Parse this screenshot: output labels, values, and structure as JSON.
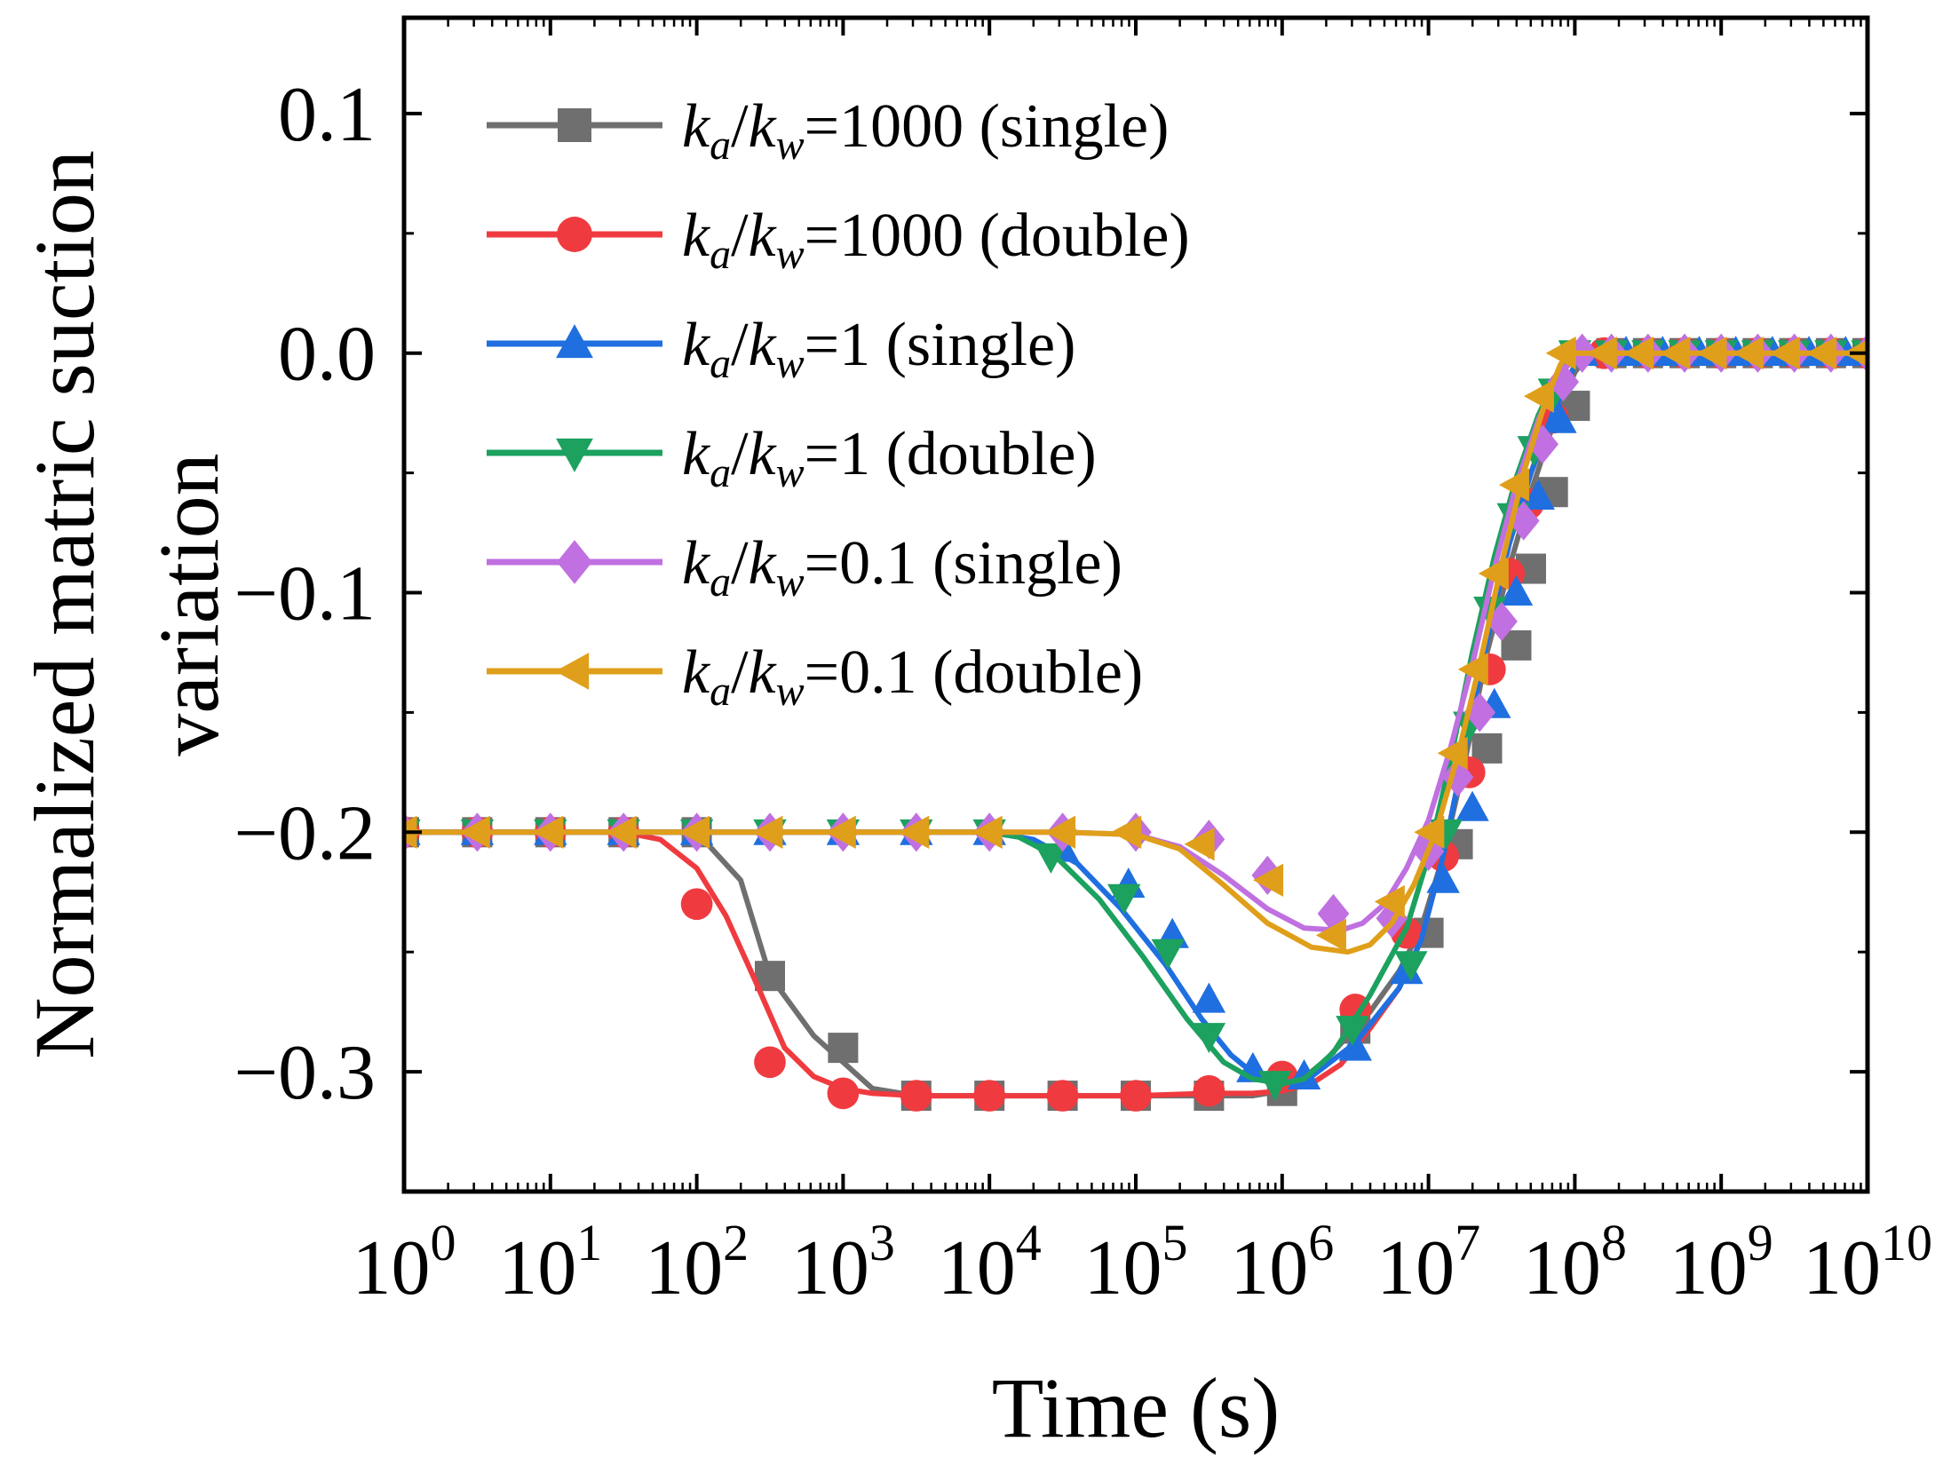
{
  "chart_data": {
    "type": "line",
    "xlabel": "Time (s)",
    "ylabel_lines": [
      "Normalized matric suction",
      "variation"
    ],
    "x_scale": "log",
    "xlim_log10": [
      0,
      10
    ],
    "ylim": [
      -0.35,
      0.14
    ],
    "x_ticks": [
      {
        "base": "10",
        "exp": "0",
        "value_log10": 0
      },
      {
        "base": "10",
        "exp": "1",
        "value_log10": 1
      },
      {
        "base": "10",
        "exp": "2",
        "value_log10": 2
      },
      {
        "base": "10",
        "exp": "3",
        "value_log10": 3
      },
      {
        "base": "10",
        "exp": "4",
        "value_log10": 4
      },
      {
        "base": "10",
        "exp": "5",
        "value_log10": 5
      },
      {
        "base": "10",
        "exp": "6",
        "value_log10": 6
      },
      {
        "base": "10",
        "exp": "7",
        "value_log10": 7
      },
      {
        "base": "10",
        "exp": "8",
        "value_log10": 8
      },
      {
        "base": "10",
        "exp": "9",
        "value_log10": 9
      },
      {
        "base": "10",
        "exp": "10",
        "value_log10": 10
      }
    ],
    "y_ticks": [
      {
        "label": "0.1",
        "value": 0.1
      },
      {
        "label": "0.0",
        "value": 0.0
      },
      {
        "label": "−0.1",
        "value": -0.1
      },
      {
        "label": "−0.2",
        "value": -0.2
      },
      {
        "label": "−0.3",
        "value": -0.3
      }
    ],
    "series": [
      {
        "name": "k_a/k_w=1000 (single)",
        "legend": {
          "ka": "k",
          "ka_sub": "a",
          "kw": "k",
          "kw_sub": "w",
          "suffix": "=1000 (single)"
        },
        "color": "#6f6f6f",
        "marker": "square",
        "x_log10": [
          0,
          0.5,
          1,
          1.5,
          2,
          2.3,
          2.5,
          2.8,
          3.2,
          3.5,
          3.8,
          4.2,
          4.8,
          5.4,
          5.8,
          6.0,
          6.1,
          6.3,
          6.6,
          6.8,
          6.95,
          7.1,
          7.25,
          7.4,
          7.55,
          7.7,
          7.85,
          8.0,
          8.1,
          8.4,
          9,
          10
        ],
        "y": [
          -0.2,
          -0.2,
          -0.2,
          -0.2,
          -0.2,
          -0.22,
          -0.26,
          -0.285,
          -0.307,
          -0.31,
          -0.31,
          -0.31,
          -0.31,
          -0.31,
          -0.31,
          -0.308,
          -0.305,
          -0.295,
          -0.275,
          -0.258,
          -0.24,
          -0.21,
          -0.17,
          -0.125,
          -0.09,
          -0.058,
          -0.03,
          -0.008,
          0,
          0,
          0,
          0
        ],
        "marker_x_log10": [
          0,
          0.5,
          1,
          1.5,
          2,
          2.5,
          3,
          3.5,
          4,
          4.5,
          5,
          5.5,
          6,
          6.5,
          7,
          7.2,
          7.4,
          7.6,
          7.7,
          7.85,
          8,
          8.25,
          8.5,
          8.75,
          9,
          9.25,
          9.5,
          9.75,
          10
        ],
        "marker_y": [
          -0.2,
          -0.2,
          -0.2,
          -0.2,
          -0.2,
          -0.26,
          -0.29,
          -0.31,
          -0.31,
          -0.31,
          -0.31,
          -0.31,
          -0.308,
          -0.282,
          -0.242,
          -0.205,
          -0.165,
          -0.122,
          -0.09,
          -0.058,
          -0.022,
          0,
          0,
          0,
          0,
          0,
          0,
          0,
          0
        ]
      },
      {
        "name": "k_a/k_w=1000 (double)",
        "legend": {
          "ka": "k",
          "ka_sub": "a",
          "kw": "k",
          "kw_sub": "w",
          "suffix": "=1000 (double)"
        },
        "color": "#ef3b3f",
        "marker": "circle",
        "x_log10": [
          0,
          0.5,
          1,
          1.5,
          1.75,
          2,
          2.2,
          2.4,
          2.6,
          2.8,
          3.0,
          3.2,
          3.5,
          4,
          4.5,
          5,
          5.5,
          5.8,
          6.0,
          6.2,
          6.4,
          6.6,
          6.8,
          6.95,
          7.1,
          7.25,
          7.4,
          7.55,
          7.7,
          7.85,
          8.0,
          8.1,
          8.4,
          9,
          10
        ],
        "y": [
          -0.2,
          -0.2,
          -0.2,
          -0.2,
          -0.203,
          -0.215,
          -0.235,
          -0.262,
          -0.29,
          -0.302,
          -0.307,
          -0.309,
          -0.31,
          -0.31,
          -0.31,
          -0.31,
          -0.309,
          -0.309,
          -0.308,
          -0.305,
          -0.297,
          -0.282,
          -0.265,
          -0.245,
          -0.21,
          -0.165,
          -0.12,
          -0.08,
          -0.05,
          -0.025,
          -0.005,
          0,
          0,
          0,
          0
        ],
        "marker_x_log10": [
          0,
          0.5,
          1,
          1.5,
          2,
          2.5,
          3,
          3.5,
          4,
          4.5,
          5,
          5.5,
          6,
          6.5,
          6.85,
          7.1,
          7.28,
          7.42,
          7.55,
          7.68,
          7.85,
          8.2,
          8.5,
          8.75,
          9,
          9.25,
          9.5,
          9.75,
          10
        ],
        "marker_y": [
          -0.2,
          -0.2,
          -0.2,
          -0.2,
          -0.23,
          -0.296,
          -0.309,
          -0.31,
          -0.31,
          -0.31,
          -0.31,
          -0.308,
          -0.302,
          -0.274,
          -0.242,
          -0.21,
          -0.175,
          -0.132,
          -0.092,
          -0.063,
          -0.027,
          0,
          0,
          0,
          0,
          0,
          0,
          0,
          0
        ]
      },
      {
        "name": "k_a/k_w=1 (single)",
        "legend": {
          "ka": "k",
          "ka_sub": "a",
          "kw": "k",
          "kw_sub": "w",
          "suffix": "=1 (single)"
        },
        "color": "#1f6fe0",
        "marker": "triangle-up",
        "x_log10": [
          0,
          1,
          2,
          3,
          4,
          4.3,
          4.6,
          4.9,
          5.2,
          5.45,
          5.65,
          5.85,
          6.0,
          6.2,
          6.5,
          6.8,
          6.95,
          7.1,
          7.25,
          7.4,
          7.55,
          7.7,
          7.85,
          8.0,
          8.1,
          8.4,
          9,
          10
        ],
        "y": [
          -0.2,
          -0.2,
          -0.2,
          -0.2,
          -0.2,
          -0.203,
          -0.213,
          -0.232,
          -0.255,
          -0.278,
          -0.293,
          -0.303,
          -0.305,
          -0.302,
          -0.288,
          -0.265,
          -0.245,
          -0.21,
          -0.165,
          -0.12,
          -0.08,
          -0.05,
          -0.025,
          -0.005,
          0,
          0,
          0,
          0
        ],
        "marker_x_log10": [
          0,
          0.5,
          1,
          1.5,
          2,
          2.5,
          3,
          3.5,
          4,
          4.5,
          4.95,
          5.25,
          5.5,
          5.8,
          6.15,
          6.5,
          6.85,
          7.1,
          7.3,
          7.45,
          7.6,
          7.75,
          7.9,
          8.05,
          8.35,
          8.6,
          8.85,
          9.1,
          9.35,
          9.6,
          9.85
        ],
        "marker_y": [
          -0.2,
          -0.2,
          -0.2,
          -0.2,
          -0.2,
          -0.2,
          -0.2,
          -0.2,
          -0.2,
          -0.207,
          -0.222,
          -0.243,
          -0.27,
          -0.299,
          -0.302,
          -0.29,
          -0.258,
          -0.22,
          -0.19,
          -0.147,
          -0.1,
          -0.06,
          -0.028,
          0,
          0,
          0,
          0,
          0,
          0,
          0,
          0
        ]
      },
      {
        "name": "k_a/k_w=1 (double)",
        "legend": {
          "ka": "k",
          "ka_sub": "a",
          "kw": "k",
          "kw_sub": "w",
          "suffix": "=1 (double)"
        },
        "color": "#1ca15f",
        "marker": "triangle-down",
        "x_log10": [
          0,
          1,
          2,
          3,
          4,
          4.2,
          4.45,
          4.75,
          5.05,
          5.35,
          5.6,
          5.8,
          6.0,
          6.15,
          6.35,
          6.6,
          6.85,
          7.0,
          7.15,
          7.3,
          7.45,
          7.6,
          7.75,
          7.9,
          8.05,
          8.1,
          8.4,
          9,
          10
        ],
        "y": [
          -0.2,
          -0.2,
          -0.2,
          -0.2,
          -0.2,
          -0.202,
          -0.21,
          -0.228,
          -0.252,
          -0.278,
          -0.296,
          -0.303,
          -0.305,
          -0.303,
          -0.292,
          -0.268,
          -0.24,
          -0.21,
          -0.17,
          -0.125,
          -0.085,
          -0.052,
          -0.026,
          -0.007,
          0,
          0,
          0,
          0,
          0
        ],
        "marker_x_log10": [
          0,
          0.5,
          1,
          1.5,
          2,
          2.5,
          3,
          3.5,
          4,
          4.42,
          4.92,
          5.22,
          5.5,
          5.95,
          6.48,
          6.88,
          7.12,
          7.28,
          7.42,
          7.58,
          7.72,
          7.86,
          8.0,
          8.25,
          8.5,
          8.75,
          9,
          9.25,
          9.5,
          9.75,
          10
        ],
        "marker_y": [
          -0.2,
          -0.2,
          -0.2,
          -0.2,
          -0.2,
          -0.2,
          -0.2,
          -0.2,
          -0.2,
          -0.21,
          -0.227,
          -0.25,
          -0.285,
          -0.305,
          -0.282,
          -0.255,
          -0.2,
          -0.155,
          -0.107,
          -0.068,
          -0.04,
          -0.016,
          0,
          0,
          0,
          0,
          0,
          0,
          0,
          0,
          0
        ]
      },
      {
        "name": "k_a/k_w=0.1 (single)",
        "legend": {
          "ka": "k",
          "ka_sub": "a",
          "kw": "k",
          "kw_sub": "w",
          "suffix": "=0.1 (single)"
        },
        "color": "#c070e0",
        "marker": "diamond",
        "x_log10": [
          0,
          1,
          2,
          3,
          4,
          4.5,
          5,
          5.3,
          5.6,
          5.9,
          6.15,
          6.4,
          6.55,
          6.7,
          6.85,
          7.0,
          7.15,
          7.3,
          7.45,
          7.6,
          7.75,
          7.9,
          8.05,
          8.1,
          8.4,
          9,
          10
        ],
        "y": [
          -0.2,
          -0.2,
          -0.2,
          -0.2,
          -0.2,
          -0.2,
          -0.201,
          -0.206,
          -0.218,
          -0.232,
          -0.24,
          -0.241,
          -0.238,
          -0.23,
          -0.215,
          -0.195,
          -0.165,
          -0.13,
          -0.09,
          -0.055,
          -0.028,
          -0.008,
          0,
          0,
          0,
          0,
          0
        ],
        "marker_x_log10": [
          0,
          0.5,
          1,
          1.5,
          2,
          2.5,
          3,
          3.5,
          4,
          4.5,
          5,
          5.5,
          5.9,
          6.35,
          6.75,
          7.0,
          7.2,
          7.35,
          7.5,
          7.65,
          7.78,
          7.92,
          8.05,
          8.25,
          8.5,
          8.75,
          9,
          9.25,
          9.5,
          9.75,
          10
        ],
        "marker_y": [
          -0.2,
          -0.2,
          -0.2,
          -0.2,
          -0.2,
          -0.2,
          -0.2,
          -0.2,
          -0.2,
          -0.2,
          -0.2,
          -0.203,
          -0.218,
          -0.234,
          -0.236,
          -0.208,
          -0.177,
          -0.15,
          -0.112,
          -0.07,
          -0.038,
          -0.012,
          0,
          0,
          0,
          0,
          0,
          0,
          0,
          0,
          0
        ]
      },
      {
        "name": "k_a/k_w=0.1 (double)",
        "legend": {
          "ka": "k",
          "ka_sub": "a",
          "kw": "k",
          "kw_sub": "w",
          "suffix": "=0.1 (double)"
        },
        "color": "#e09f1a",
        "marker": "triangle-left",
        "x_log10": [
          0,
          1,
          2,
          3,
          4,
          4.5,
          5,
          5.3,
          5.6,
          5.9,
          6.2,
          6.45,
          6.6,
          6.75,
          6.9,
          7.05,
          7.2,
          7.35,
          7.5,
          7.65,
          7.8,
          7.9,
          7.95,
          8.1,
          8.4,
          9,
          10
        ],
        "y": [
          -0.2,
          -0.2,
          -0.2,
          -0.2,
          -0.2,
          -0.2,
          -0.201,
          -0.207,
          -0.222,
          -0.238,
          -0.248,
          -0.25,
          -0.247,
          -0.238,
          -0.222,
          -0.2,
          -0.168,
          -0.13,
          -0.088,
          -0.05,
          -0.02,
          -0.005,
          0,
          0,
          0,
          0,
          0
        ],
        "marker_x_log10": [
          0,
          0.5,
          1,
          1.5,
          2,
          2.5,
          3,
          3.5,
          4,
          4.5,
          4.95,
          5.45,
          5.92,
          6.35,
          6.75,
          7.02,
          7.18,
          7.32,
          7.46,
          7.6,
          7.77,
          7.92,
          8.2,
          8.45,
          8.7,
          8.95,
          9.2,
          9.45,
          9.7,
          9.95
        ],
        "marker_y": [
          -0.2,
          -0.2,
          -0.2,
          -0.2,
          -0.2,
          -0.2,
          -0.2,
          -0.2,
          -0.2,
          -0.2,
          -0.2,
          -0.205,
          -0.22,
          -0.243,
          -0.229,
          -0.2,
          -0.167,
          -0.132,
          -0.092,
          -0.055,
          -0.018,
          0,
          0,
          0,
          0,
          0,
          0,
          0,
          0,
          0
        ]
      }
    ]
  }
}
